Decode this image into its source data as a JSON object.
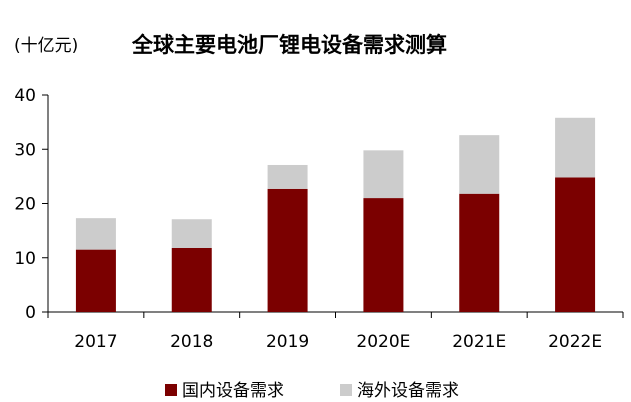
{
  "chart_data": {
    "type": "bar",
    "stacked": true,
    "title": "全球主要电池厂锂电设备需求测算",
    "unit_label": "(十亿元)",
    "categories": [
      "2017",
      "2018",
      "2019",
      "2020E",
      "2021E",
      "2022E"
    ],
    "series": [
      {
        "name": "国内设备需求",
        "color": "#7b0000",
        "values": [
          11.5,
          11.8,
          22.7,
          21.0,
          21.8,
          24.8
        ]
      },
      {
        "name": "海外设备需求",
        "color": "#cccccc",
        "values": [
          5.8,
          5.3,
          4.4,
          8.8,
          10.8,
          11.0
        ]
      }
    ],
    "ylim": [
      0,
      40
    ],
    "yticks": [
      0,
      10,
      20,
      30,
      40
    ],
    "legend_position": "bottom",
    "grid": false
  }
}
